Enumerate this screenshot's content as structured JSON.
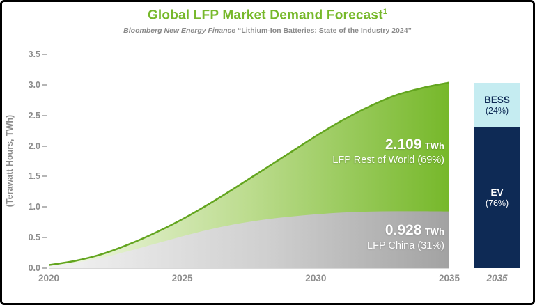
{
  "title": {
    "text": "Global LFP Market Demand Forecast",
    "sup": "1"
  },
  "subtitle": {
    "source": "Bloomberg New Energy Finance",
    "report": "“Lithium-Ion Batteries: State of the Industry 2024”"
  },
  "y_axis": {
    "label": "(Terawatt Hours, TWh)",
    "ticks": [
      "3.5",
      "3.0",
      "2.5",
      "2.0",
      "1.5",
      "1.0",
      "0.5",
      "0.0"
    ]
  },
  "x_axis": {
    "ticks": [
      "2020",
      "2025",
      "2030",
      "2035"
    ],
    "bar_tick": "2035"
  },
  "annotations": {
    "row": {
      "value": "2.109",
      "unit": "TWh",
      "label": "LFP Rest of World (69%)"
    },
    "china": {
      "value": "0.928",
      "unit": "TWh",
      "label": "LFP China (31%)"
    }
  },
  "bar": {
    "total_twh": 3.037,
    "segments": [
      {
        "name": "BESS",
        "pct_label": "(24%)",
        "share": 0.24,
        "color": "#c5ecf1",
        "text_color": "#0e2a55"
      },
      {
        "name": "EV",
        "pct_label": "(76%)",
        "share": 0.76,
        "color": "#0e2a55",
        "text_color": "#ffffff"
      }
    ]
  },
  "colors": {
    "title_green": "#76b82a",
    "area_green": "#76b82a",
    "area_green_light": "#f4f9ea",
    "area_gray": "#a2a2a2",
    "area_gray_light": "#f3f3f3",
    "green_edge": "#63a51f",
    "navy": "#0e2a55",
    "cyan": "#c5ecf1"
  },
  "chart_data": {
    "type": "area",
    "stacked": true,
    "title": "Global LFP Market Demand Forecast",
    "ylabel": "(Terawatt Hours, TWh)",
    "ylim": [
      0,
      3.5
    ],
    "x": [
      2020,
      2021,
      2022,
      2023,
      2024,
      2025,
      2026,
      2027,
      2028,
      2029,
      2030,
      2031,
      2032,
      2033,
      2034,
      2035
    ],
    "series": [
      {
        "name": "LFP China",
        "share_2035": "31%",
        "values": [
          0.04,
          0.09,
          0.17,
          0.28,
          0.4,
          0.52,
          0.63,
          0.72,
          0.79,
          0.84,
          0.88,
          0.91,
          0.925,
          0.93,
          0.93,
          0.928
        ]
      },
      {
        "name": "LFP Rest of World",
        "share_2035": "69%",
        "values": [
          0.01,
          0.03,
          0.06,
          0.11,
          0.18,
          0.28,
          0.42,
          0.6,
          0.81,
          1.04,
          1.28,
          1.51,
          1.72,
          1.9,
          2.02,
          2.109
        ]
      }
    ],
    "legend_position": "none",
    "grid": false
  }
}
